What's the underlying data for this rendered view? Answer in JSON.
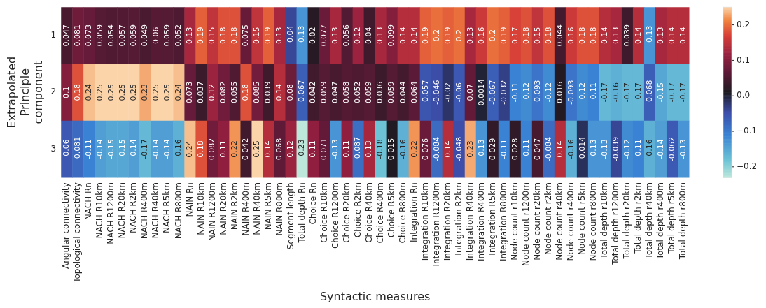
{
  "chart_data": {
    "type": "heatmap",
    "xlabel": "Syntactic measures",
    "ylabel": "Extrapolated Principle component",
    "categories": [
      "Angular connectivity",
      "Topological connectivity",
      "NACH Rn",
      "NACH R10km",
      "NACH R1200m",
      "NACH R20km",
      "NACH R2km",
      "NACH R400m",
      "NACH R40km",
      "NACH R5km",
      "NACH R800m",
      "NAIN Rn",
      "NAIN R10km",
      "NAIN R1200m",
      "NAIN R20km",
      "NAIN R2km",
      "NAIN R400m",
      "NAIN R40km",
      "NAIN R5km",
      "NAIN R800m",
      "Segment length",
      "Total depth Rn",
      "Choice Rn",
      "Choice R10km",
      "Choice R1200m",
      "Choice R20km",
      "Choice R2km",
      "Choice R40km",
      "Choice R400m",
      "Choice R5km",
      "Choice R800m",
      "Integration Rn",
      "Integration R10km",
      "Integration R1200m",
      "Integration R20km",
      "Integration R2km",
      "Integration R40km",
      "Integration R400m",
      "Integration R5km",
      "Integration R800m",
      "Node count r10km",
      "Node count r1200m",
      "Node count r20km",
      "Node count r2km",
      "Node count r40km",
      "Node count r400m",
      "Node count r5km",
      "Node count r800m",
      "Total depth r10km",
      "Total depth r1200m",
      "Total depth r20km",
      "Total depth r2km",
      "Total depth r40km",
      "Total depth r400m",
      "Total depth r5km",
      "Total depth r800m"
    ],
    "y_categories": [
      "1",
      "2",
      "3"
    ],
    "cells": [
      [
        0.047,
        0.081,
        0.073,
        0.059,
        0.054,
        0.057,
        0.059,
        0.049,
        0.06,
        0.059,
        0.052,
        0.13,
        0.19,
        0.15,
        0.18,
        0.18,
        0.075,
        0.15,
        0.19,
        0.13,
        -0.04,
        -0.13,
        0.02,
        0.077,
        0.13,
        0.056,
        0.12,
        0.04,
        0.13,
        0.099,
        0.14,
        0.14,
        0.19,
        0.2,
        0.19,
        0.2,
        0.13,
        0.16,
        0.2,
        0.19,
        0.17,
        0.18,
        0.15,
        0.18,
        0.044,
        0.16,
        0.18,
        0.18,
        0.14,
        0.13,
        0.039,
        0.14,
        -0.13,
        0.13,
        0.14,
        0.14
      ],
      [
        0.1,
        0.18,
        0.24,
        0.25,
        0.25,
        0.25,
        0.25,
        0.23,
        0.25,
        0.25,
        0.24,
        0.073,
        0.037,
        0.12,
        0.082,
        0.055,
        0.18,
        0.085,
        0.039,
        0.14,
        0.08,
        -0.067,
        0.042,
        0.059,
        0.047,
        0.058,
        0.052,
        0.059,
        0.036,
        0.059,
        0.044,
        0.064,
        -0.057,
        -0.046,
        -0.02,
        -0.06,
        0.07,
        0.0014,
        -0.067,
        -0.032,
        -0.11,
        -0.12,
        -0.093,
        -0.12,
        0.016,
        -0.093,
        -0.12,
        -0.11,
        -0.17,
        -0.16,
        -0.17,
        -0.17,
        -0.068,
        -0.15,
        -0.17,
        -0.17
      ],
      [
        -0.06,
        -0.081,
        -0.11,
        -0.14,
        -0.15,
        -0.15,
        -0.14,
        -0.17,
        -0.14,
        -0.14,
        -0.16,
        0.24,
        0.18,
        0.082,
        0.11,
        0.22,
        0.042,
        0.25,
        0.14,
        0.068,
        0.12,
        -0.23,
        0.11,
        0.071,
        -0.13,
        0.11,
        -0.087,
        0.13,
        -0.18,
        0.015,
        -0.16,
        0.22,
        0.076,
        -0.084,
        0.14,
        -0.048,
        0.23,
        -0.13,
        0.029,
        -0.11,
        0.028,
        -0.11,
        0.047,
        -0.084,
        0.14,
        -0.16,
        -0.014,
        -0.13,
        -0.13,
        -0.039,
        -0.12,
        -0.11,
        -0.16,
        -0.14,
        -0.062,
        -0.13
      ]
    ],
    "clim": [
      -0.23,
      0.25
    ],
    "cticks": [
      {
        "value": -0.2,
        "label": "−0.2"
      },
      {
        "value": -0.1,
        "label": "−0.1"
      },
      {
        "value": 0,
        "label": "0.0"
      },
      0.1,
      0.2
    ],
    "data_labels": true
  }
}
